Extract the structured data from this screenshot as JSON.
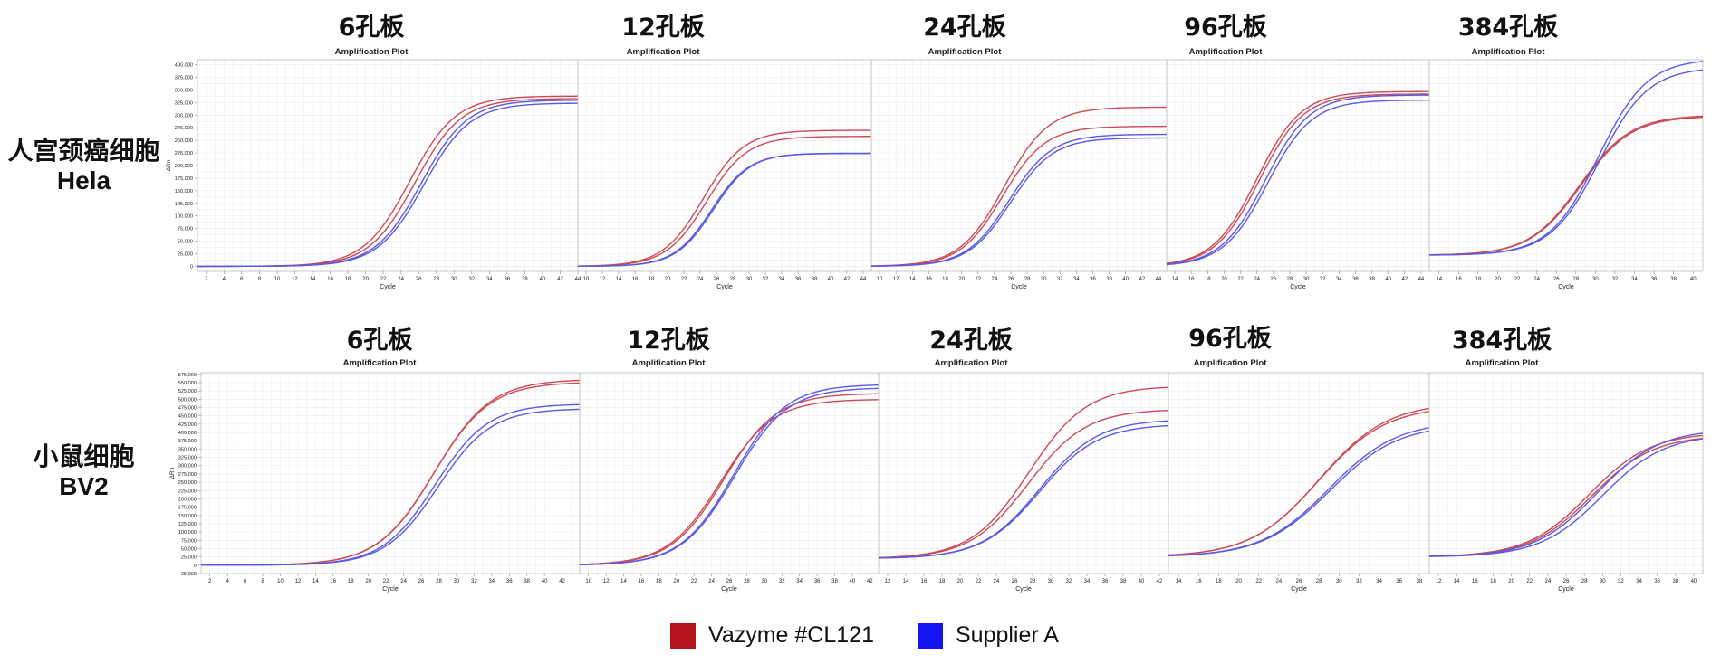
{
  "row_labels": [
    {
      "line1": "人宫颈癌细胞",
      "line2": "Hela"
    },
    {
      "line1": "小鼠细胞",
      "line2": "BV2"
    }
  ],
  "legend": [
    {
      "label": "Vazyme #CL121",
      "color": "#b2141c"
    },
    {
      "label": "Supplier A",
      "color": "#1414f0"
    }
  ],
  "colors": {
    "vazyme_line": "#cc4a55",
    "supplier_line": "#5a5ae6",
    "grid": "#ececec",
    "frame": "#bdbdbd",
    "text": "#222222"
  },
  "chart_data": [
    {
      "type": "line",
      "panel_label": "6孔板",
      "title": "Amplification Plot",
      "xlabel": "Cycle",
      "ylabel": "ΔRn",
      "xlim": [
        1,
        44
      ],
      "x_ticks": [
        2,
        4,
        6,
        8,
        10,
        12,
        14,
        16,
        18,
        20,
        22,
        24,
        26,
        28,
        30,
        32,
        34,
        36,
        38,
        40,
        42,
        44
      ],
      "ylim": [
        -10000,
        410000
      ],
      "y_tick_values": [
        0,
        25000,
        50000,
        75000,
        100000,
        125000,
        150000,
        175000,
        200000,
        225000,
        250000,
        275000,
        300000,
        325000,
        350000,
        375000,
        400000
      ],
      "y_tick_labels": [
        "0",
        "25,000",
        "50,000",
        "75,000",
        "100,000",
        "125,000",
        "150,000",
        "175,000",
        "200,000",
        "225,000",
        "250,000",
        "275,000",
        "300,000",
        "325,000",
        "350,000",
        "375,000",
        "400,000"
      ],
      "series": [
        {
          "group": "Vazyme #CL121",
          "plateau": 338000,
          "midpoint": 25.0,
          "slope": 2.6,
          "baseline": 0
        },
        {
          "group": "Vazyme #CL121",
          "plateau": 333000,
          "midpoint": 25.6,
          "slope": 2.6,
          "baseline": 0
        },
        {
          "group": "Supplier A",
          "plateau": 330000,
          "midpoint": 26.3,
          "slope": 2.6,
          "baseline": 0
        },
        {
          "group": "Supplier A",
          "plateau": 324000,
          "midpoint": 26.6,
          "slope": 2.6,
          "baseline": 0
        }
      ]
    },
    {
      "type": "line",
      "panel_label": "12孔板",
      "title": "Amplification Plot",
      "xlabel": "Cycle",
      "ylabel": "",
      "xlim": [
        9,
        45
      ],
      "x_ticks": [
        10,
        12,
        14,
        16,
        18,
        20,
        22,
        24,
        26,
        28,
        30,
        32,
        34,
        36,
        38,
        40,
        42,
        44
      ],
      "ylim": [
        -10000,
        410000
      ],
      "y_tick_values": [],
      "y_tick_labels": [],
      "series": [
        {
          "group": "Vazyme #CL121",
          "plateau": 270000,
          "midpoint": 24.4,
          "slope": 2.5,
          "baseline": 0
        },
        {
          "group": "Vazyme #CL121",
          "plateau": 258000,
          "midpoint": 24.8,
          "slope": 2.5,
          "baseline": 0
        },
        {
          "group": "Supplier A",
          "plateau": 224000,
          "midpoint": 25.4,
          "slope": 2.3,
          "baseline": 0
        },
        {
          "group": "Supplier A",
          "plateau": 224500,
          "midpoint": 25.6,
          "slope": 2.3,
          "baseline": 0
        }
      ]
    },
    {
      "type": "line",
      "panel_label": "24孔板",
      "title": "Amplification Plot",
      "xlabel": "Cycle",
      "ylabel": "",
      "xlim": [
        9,
        45
      ],
      "x_ticks": [
        10,
        12,
        14,
        16,
        18,
        20,
        22,
        24,
        26,
        28,
        30,
        32,
        34,
        36,
        38,
        40,
        42,
        44
      ],
      "ylim": [
        -10000,
        410000
      ],
      "y_tick_values": [],
      "y_tick_labels": [],
      "series": [
        {
          "group": "Vazyme #CL121",
          "plateau": 316000,
          "midpoint": 25.2,
          "slope": 2.7,
          "baseline": 0
        },
        {
          "group": "Vazyme #CL121",
          "plateau": 278000,
          "midpoint": 25.0,
          "slope": 2.6,
          "baseline": 0
        },
        {
          "group": "Supplier A",
          "plateau": 262000,
          "midpoint": 25.8,
          "slope": 2.6,
          "baseline": 0
        },
        {
          "group": "Supplier A",
          "plateau": 255000,
          "midpoint": 26.0,
          "slope": 2.6,
          "baseline": 0
        }
      ]
    },
    {
      "type": "line",
      "panel_label": "96孔板",
      "title": "Amplification Plot",
      "xlabel": "Cycle",
      "ylabel": "",
      "xlim": [
        13,
        45
      ],
      "x_ticks": [
        14,
        16,
        18,
        20,
        22,
        24,
        26,
        28,
        30,
        32,
        34,
        36,
        38,
        40,
        42,
        44
      ],
      "ylim": [
        -10000,
        410000
      ],
      "y_tick_values": [],
      "y_tick_labels": [],
      "series": [
        {
          "group": "Vazyme #CL121",
          "plateau": 347000,
          "midpoint": 24.0,
          "slope": 2.7,
          "baseline": 0
        },
        {
          "group": "Vazyme #CL121",
          "plateau": 342000,
          "midpoint": 24.3,
          "slope": 2.7,
          "baseline": 0
        },
        {
          "group": "Supplier A",
          "plateau": 340000,
          "midpoint": 25.0,
          "slope": 2.7,
          "baseline": 0
        },
        {
          "group": "Supplier A",
          "plateau": 330000,
          "midpoint": 25.3,
          "slope": 2.7,
          "baseline": 0
        }
      ]
    },
    {
      "type": "line",
      "panel_label": "384孔板",
      "title": "Amplification Plot",
      "xlabel": "Cycle",
      "ylabel": "",
      "xlim": [
        13,
        41
      ],
      "x_ticks": [
        14,
        16,
        18,
        20,
        22,
        24,
        26,
        28,
        30,
        32,
        34,
        36,
        38,
        40
      ],
      "ylim": [
        -10000,
        410000
      ],
      "y_tick_values": [],
      "y_tick_labels": [],
      "series": [
        {
          "group": "Vazyme #CL121",
          "plateau": 300000,
          "midpoint": 28.4,
          "slope": 2.6,
          "baseline": 22000
        },
        {
          "group": "Vazyme #CL121",
          "plateau": 298000,
          "midpoint": 28.5,
          "slope": 2.6,
          "baseline": 22000
        },
        {
          "group": "Supplier A",
          "plateau": 412000,
          "midpoint": 30.3,
          "slope": 2.5,
          "baseline": 22000
        },
        {
          "group": "Supplier A",
          "plateau": 395000,
          "midpoint": 30.4,
          "slope": 2.5,
          "baseline": 22000
        }
      ]
    },
    {
      "type": "line",
      "panel_label": "6孔板",
      "title": "Amplification Plot",
      "xlabel": "Cycle",
      "ylabel": "ΔRn",
      "xlim": [
        1,
        44
      ],
      "x_ticks": [
        2,
        4,
        6,
        8,
        10,
        12,
        14,
        16,
        18,
        20,
        22,
        24,
        26,
        28,
        30,
        32,
        34,
        36,
        38,
        40,
        42
      ],
      "ylim": [
        -25000,
        580000
      ],
      "y_tick_values": [
        -25000,
        0,
        25000,
        50000,
        75000,
        100000,
        125000,
        150000,
        175000,
        200000,
        225000,
        250000,
        275000,
        300000,
        325000,
        350000,
        375000,
        400000,
        425000,
        450000,
        475000,
        500000,
        525000,
        550000,
        575000
      ],
      "y_tick_labels": [
        "-25,000",
        "0",
        "25,000",
        "50,000",
        "75,000",
        "100,000",
        "125,000",
        "150,000",
        "175,000",
        "200,000",
        "225,000",
        "250,000",
        "275,000",
        "300,000",
        "325,000",
        "350,000",
        "375,000",
        "400,000",
        "425,000",
        "450,000",
        "475,000",
        "500,000",
        "525,000",
        "550,000",
        "575,000"
      ],
      "series": [
        {
          "group": "Vazyme #CL121",
          "plateau": 560000,
          "midpoint": 27.5,
          "slope": 3.2,
          "baseline": 0
        },
        {
          "group": "Vazyme #CL121",
          "plateau": 552000,
          "midpoint": 27.4,
          "slope": 3.2,
          "baseline": 0
        },
        {
          "group": "Supplier A",
          "plateau": 486000,
          "midpoint": 27.6,
          "slope": 3.0,
          "baseline": 0
        },
        {
          "group": "Supplier A",
          "plateau": 472000,
          "midpoint": 27.9,
          "slope": 3.0,
          "baseline": 0
        }
      ]
    },
    {
      "type": "line",
      "panel_label": "12孔板",
      "title": "Amplification Plot",
      "xlabel": "Cycle",
      "ylabel": "",
      "xlim": [
        9,
        43
      ],
      "x_ticks": [
        10,
        12,
        14,
        16,
        18,
        20,
        22,
        24,
        26,
        28,
        30,
        32,
        34,
        36,
        38,
        40,
        42
      ],
      "ylim": [
        -25000,
        580000
      ],
      "y_tick_values": [],
      "y_tick_labels": [],
      "series": [
        {
          "group": "Vazyme #CL121",
          "plateau": 500000,
          "midpoint": 25.0,
          "slope": 3.0,
          "baseline": 0
        },
        {
          "group": "Vazyme #CL121",
          "plateau": 518000,
          "midpoint": 25.4,
          "slope": 3.0,
          "baseline": 0
        },
        {
          "group": "Supplier A",
          "plateau": 545000,
          "midpoint": 26.5,
          "slope": 3.0,
          "baseline": 0
        },
        {
          "group": "Supplier A",
          "plateau": 535000,
          "midpoint": 26.6,
          "slope": 3.0,
          "baseline": 0
        }
      ]
    },
    {
      "type": "line",
      "panel_label": "24孔板",
      "title": "Amplification Plot",
      "xlabel": "Cycle",
      "ylabel": "",
      "xlim": [
        11,
        43
      ],
      "x_ticks": [
        12,
        14,
        16,
        18,
        20,
        22,
        24,
        26,
        28,
        30,
        32,
        34,
        36,
        38,
        40,
        42
      ],
      "ylim": [
        -25000,
        580000
      ],
      "y_tick_values": [],
      "y_tick_labels": [],
      "series": [
        {
          "group": "Vazyme #CL121",
          "plateau": 540000,
          "midpoint": 27.6,
          "slope": 3.2,
          "baseline": 20000
        },
        {
          "group": "Vazyme #CL121",
          "plateau": 470000,
          "midpoint": 27.5,
          "slope": 3.2,
          "baseline": 20000
        },
        {
          "group": "Supplier A",
          "plateau": 440000,
          "midpoint": 28.8,
          "slope": 3.2,
          "baseline": 20000
        },
        {
          "group": "Supplier A",
          "plateau": 425000,
          "midpoint": 28.8,
          "slope": 3.2,
          "baseline": 20000
        }
      ]
    },
    {
      "type": "line",
      "panel_label": "96孔板",
      "title": "Amplification Plot",
      "xlabel": "Cycle",
      "ylabel": "",
      "xlim": [
        13,
        39
      ],
      "x_ticks": [
        14,
        16,
        18,
        20,
        22,
        24,
        26,
        28,
        30,
        32,
        34,
        36,
        38
      ],
      "ylim": [
        -25000,
        580000
      ],
      "y_tick_values": [],
      "y_tick_labels": [],
      "series": [
        {
          "group": "Vazyme #CL121",
          "plateau": 490000,
          "midpoint": 28.0,
          "slope": 3.4,
          "baseline": 25000
        },
        {
          "group": "Vazyme #CL121",
          "plateau": 480000,
          "midpoint": 27.9,
          "slope": 3.4,
          "baseline": 25000
        },
        {
          "group": "Supplier A",
          "plateau": 435000,
          "midpoint": 29.0,
          "slope": 3.4,
          "baseline": 25000
        },
        {
          "group": "Supplier A",
          "plateau": 425000,
          "midpoint": 29.1,
          "slope": 3.4,
          "baseline": 25000
        }
      ]
    },
    {
      "type": "line",
      "panel_label": "384孔板",
      "title": "Amplification Plot",
      "xlabel": "Cycle",
      "ylabel": "",
      "xlim": [
        11,
        41
      ],
      "x_ticks": [
        12,
        14,
        16,
        18,
        20,
        22,
        24,
        26,
        28,
        30,
        32,
        34,
        36,
        38,
        40
      ],
      "ylim": [
        -25000,
        580000
      ],
      "y_tick_values": [],
      "y_tick_labels": [],
      "series": [
        {
          "group": "Vazyme #CL121",
          "plateau": 400000,
          "midpoint": 28.5,
          "slope": 3.4,
          "baseline": 25000
        },
        {
          "group": "Vazyme #CL121",
          "plateau": 392000,
          "midpoint": 28.8,
          "slope": 3.4,
          "baseline": 25000
        },
        {
          "group": "Supplier A",
          "plateau": 410000,
          "midpoint": 29.4,
          "slope": 3.4,
          "baseline": 25000
        },
        {
          "group": "Supplier A",
          "plateau": 395000,
          "midpoint": 30.0,
          "slope": 3.4,
          "baseline": 25000
        }
      ]
    }
  ]
}
